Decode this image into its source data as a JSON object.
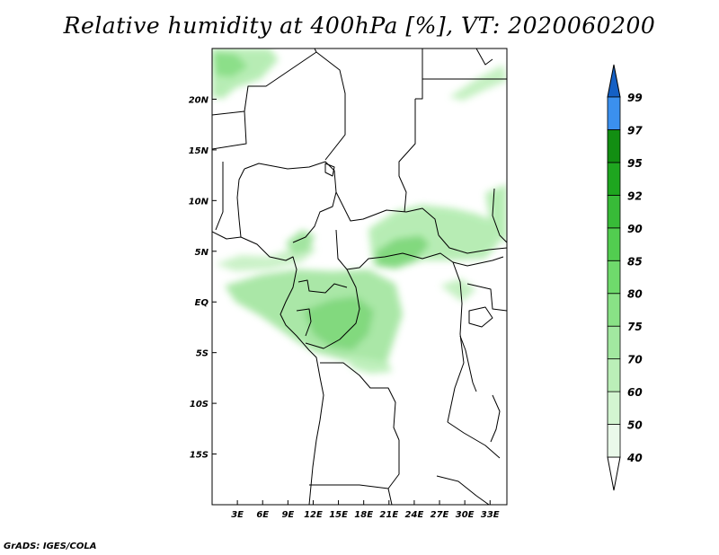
{
  "title": "Relative humidity at 400hPa [%], VT: 2020060200",
  "credit": "GrADS: IGES/COLA",
  "map": {
    "lat_labels": [
      "20N",
      "15N",
      "10N",
      "5N",
      "EQ",
      "5S",
      "10S",
      "15S"
    ],
    "lon_labels": [
      "3E",
      "6E",
      "9E",
      "12E",
      "15E",
      "18E",
      "21E",
      "24E",
      "27E",
      "30E",
      "33E"
    ],
    "lat_range": [
      -20,
      25
    ],
    "lon_range": [
      0,
      35
    ]
  },
  "colorbar": {
    "levels": [
      "40",
      "50",
      "60",
      "70",
      "75",
      "80",
      "85",
      "90",
      "92",
      "95",
      "97",
      "99"
    ],
    "colors": [
      "#eaf9ea",
      "#d3f5d1",
      "#bbefb8",
      "#a2e8a0",
      "#89e286",
      "#6fda6c",
      "#52cd50",
      "#38bb38",
      "#1ea61f",
      "#128e12",
      "#3b90ee",
      "#2776dc",
      "#1560c4"
    ]
  }
}
